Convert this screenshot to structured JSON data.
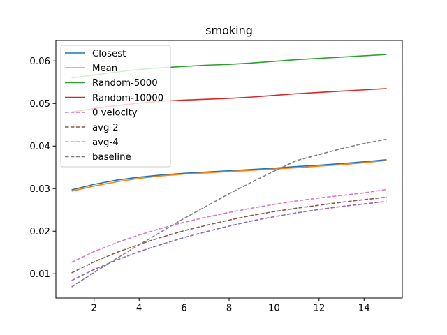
{
  "chart_data": {
    "type": "line",
    "title": "smoking",
    "xlabel": "",
    "ylabel": "",
    "xlim": [
      0.3,
      15.7
    ],
    "ylim": [
      0.0043,
      0.0648
    ],
    "xticks": [
      2,
      4,
      6,
      8,
      10,
      12,
      14
    ],
    "yticks": [
      0.01,
      0.02,
      0.03,
      0.04,
      0.05,
      0.06
    ],
    "grid": false,
    "legend_position": "top-left",
    "x": [
      1,
      2,
      3,
      4,
      5,
      6,
      7,
      8,
      9,
      10,
      11,
      12,
      13,
      14,
      15
    ],
    "series": [
      {
        "name": "Closest",
        "color": "#1f77b4",
        "dash": "solid",
        "values": [
          0.0297,
          0.031,
          0.032,
          0.0327,
          0.0332,
          0.0336,
          0.0339,
          0.0342,
          0.0345,
          0.0348,
          0.0352,
          0.0355,
          0.0359,
          0.0363,
          0.0368
        ]
      },
      {
        "name": "Mean",
        "color": "#ff7f0e",
        "dash": "solid",
        "values": [
          0.0294,
          0.0306,
          0.0316,
          0.0324,
          0.033,
          0.0334,
          0.0337,
          0.034,
          0.0343,
          0.0346,
          0.0349,
          0.0353,
          0.0356,
          0.0361,
          0.0366
        ]
      },
      {
        "name": "Random-5000",
        "color": "#2ca02c",
        "dash": "solid",
        "values": [
          0.056,
          0.0567,
          0.0574,
          0.058,
          0.0584,
          0.0587,
          0.059,
          0.0592,
          0.0595,
          0.0599,
          0.0603,
          0.0606,
          0.0609,
          0.0612,
          0.0615
        ]
      },
      {
        "name": "Random-10000",
        "color": "#d62728",
        "dash": "solid",
        "values": [
          0.048,
          0.0488,
          0.0495,
          0.0501,
          0.0505,
          0.0508,
          0.051,
          0.0512,
          0.0515,
          0.0519,
          0.0523,
          0.0526,
          0.0529,
          0.0532,
          0.0535
        ]
      },
      {
        "name": "0 velocity",
        "color": "#9467bd",
        "dash": "dashed",
        "values": [
          0.0084,
          0.011,
          0.0132,
          0.0152,
          0.0169,
          0.0185,
          0.0199,
          0.0212,
          0.0224,
          0.0234,
          0.0243,
          0.0251,
          0.0258,
          0.0264,
          0.027
        ]
      },
      {
        "name": "avg-2",
        "color": "#8c564b",
        "dash": "dashed",
        "values": [
          0.0102,
          0.0128,
          0.015,
          0.0169,
          0.0186,
          0.0201,
          0.0214,
          0.0226,
          0.0237,
          0.0246,
          0.0254,
          0.0261,
          0.0268,
          0.0274,
          0.028
        ]
      },
      {
        "name": "avg-4",
        "color": "#e377c2",
        "dash": "dashed",
        "values": [
          0.0127,
          0.0152,
          0.0173,
          0.0191,
          0.0207,
          0.0221,
          0.0233,
          0.0244,
          0.0254,
          0.0263,
          0.0271,
          0.0278,
          0.0284,
          0.029,
          0.0298
        ]
      },
      {
        "name": "baseline",
        "color": "#7f7f7f",
        "dash": "dashed",
        "values": [
          0.0069,
          0.0103,
          0.0136,
          0.0168,
          0.0199,
          0.023,
          0.0259,
          0.0288,
          0.0315,
          0.0341,
          0.0366,
          0.038,
          0.0394,
          0.0406,
          0.0416
        ]
      }
    ]
  }
}
